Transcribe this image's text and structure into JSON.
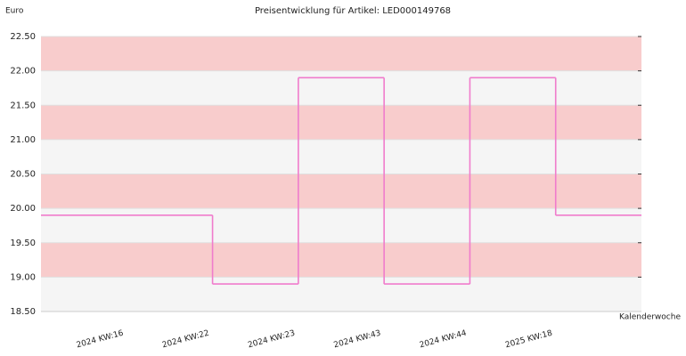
{
  "chart_data": {
    "type": "step",
    "title": "Preisentwicklung für Artikel: LED000149768",
    "y_label": "Euro",
    "x_label": "Kalenderwoche",
    "categories": [
      "2024 KW:16",
      "2024 KW:22",
      "2024 KW:23",
      "2024 KW:43",
      "2024 KW:44",
      "2025 KW:18"
    ],
    "values": [
      19.9,
      18.9,
      21.9,
      18.9,
      21.9,
      19.9
    ],
    "color": "#f07ccc",
    "ylim": [
      18.5,
      22.5
    ],
    "yticks": [
      {
        "value": 18.5,
        "label": "18.50"
      },
      {
        "value": 19,
        "label": "19.00"
      },
      {
        "value": 19.5,
        "label": "19.50"
      },
      {
        "value": 20,
        "label": "20.00"
      },
      {
        "value": 20.5,
        "label": "20.50"
      },
      {
        "value": 21,
        "label": "21.00"
      },
      {
        "value": 21.5,
        "label": "21.50"
      },
      {
        "value": 22,
        "label": "22.00"
      },
      {
        "value": 22.5,
        "label": "22.50"
      }
    ],
    "band_colors": [
      "#f5f5f5",
      "#f8cccc"
    ]
  }
}
